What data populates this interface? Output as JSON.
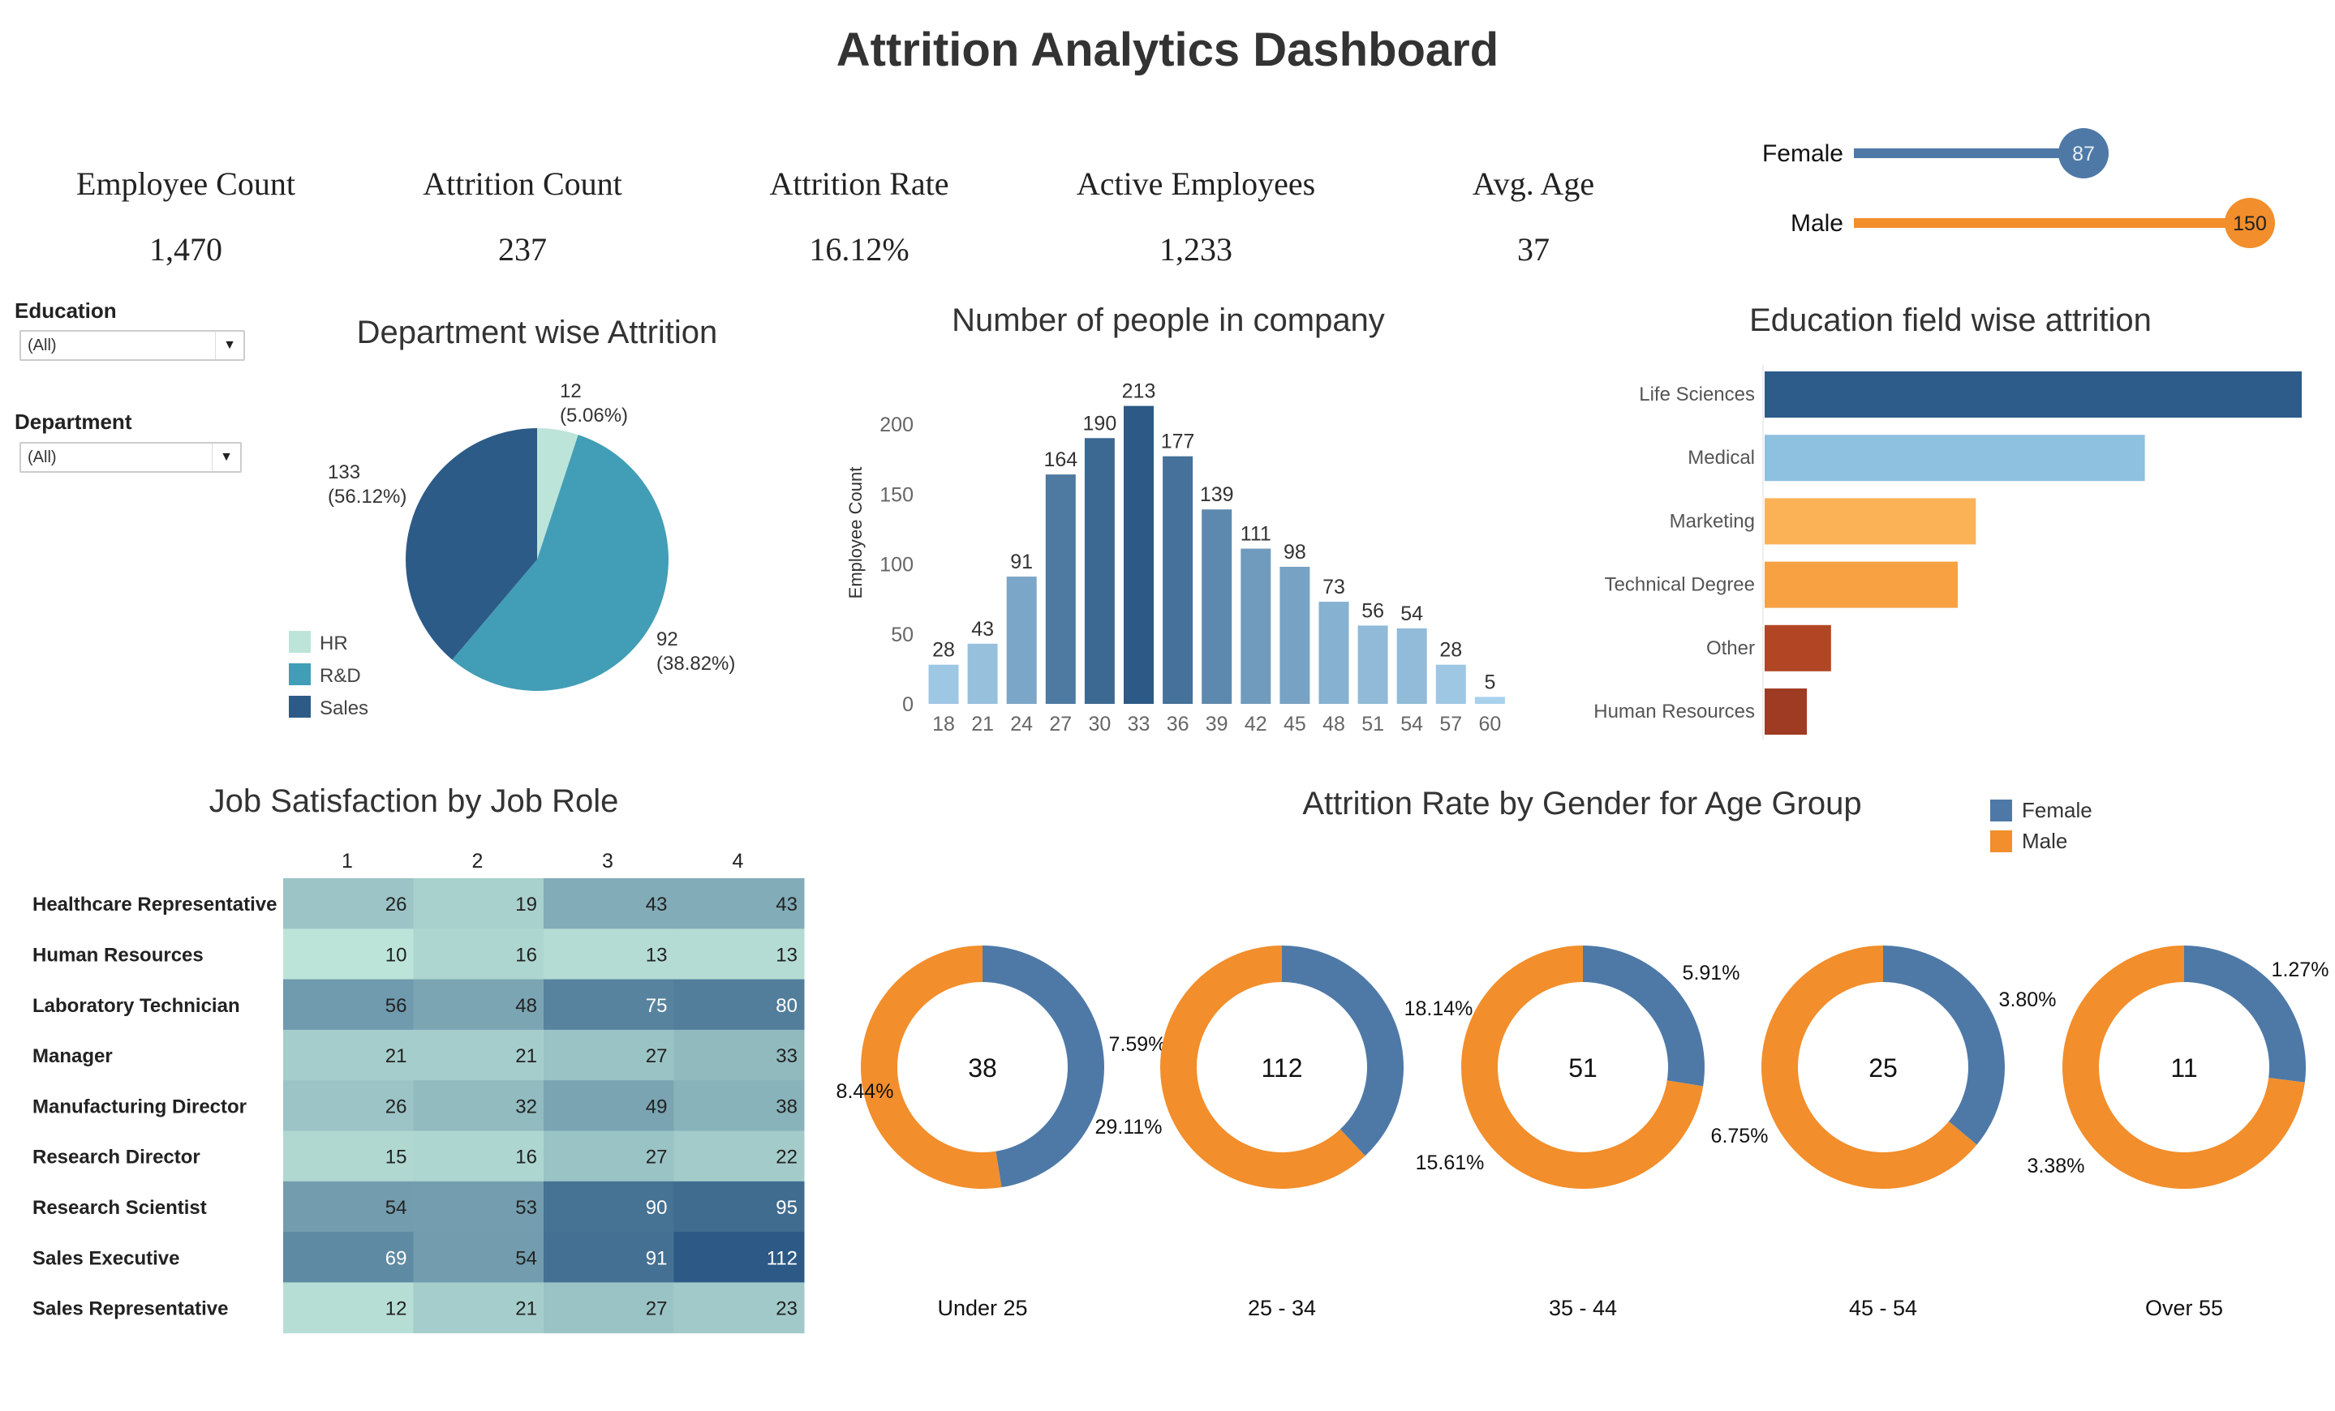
{
  "header": {
    "title": "Attrition Analytics Dashboard"
  },
  "kpis": [
    {
      "label": "Employee Count",
      "value": "1,470"
    },
    {
      "label": "Attrition Count",
      "value": "237"
    },
    {
      "label": "Attrition Rate",
      "value": "16.12%"
    },
    {
      "label": "Active Employees",
      "value": "1,233"
    },
    {
      "label": "Avg. Age",
      "value": "37"
    }
  ],
  "gender_attrition": {
    "max": 150,
    "items": [
      {
        "label": "Female",
        "value": 87,
        "display": "87",
        "color": "#4e79a7"
      },
      {
        "label": "Male",
        "value": 150,
        "display": "150",
        "color": "#f28e2b"
      }
    ]
  },
  "filters": {
    "education": {
      "label": "Education",
      "value": "(All)"
    },
    "department": {
      "label": "Department",
      "value": "(All)"
    }
  },
  "chart_data": [
    {
      "type": "pie",
      "title": "Department wise Attrition",
      "legend_position": "bottom-left",
      "slices": [
        {
          "name": "HR",
          "value": 12,
          "label": "12",
          "pct": "(5.06%)",
          "color": "#bde4d9"
        },
        {
          "name": "R&D",
          "value": 133,
          "label": "133",
          "pct": "(56.12%)",
          "color": "#429eb6"
        },
        {
          "name": "Sales",
          "value": 92,
          "label": "92",
          "pct": "(38.82%)",
          "color": "#2d5b87"
        }
      ]
    },
    {
      "type": "bar",
      "title": "Number of people in company",
      "ylabel": "Employee Count",
      "ylim": [
        0,
        213
      ],
      "yticks": [
        "0",
        "50",
        "100",
        "150",
        "200"
      ],
      "categories": [
        "18",
        "21",
        "24",
        "27",
        "30",
        "33",
        "36",
        "39",
        "42",
        "45",
        "48",
        "51",
        "54",
        "57",
        "60"
      ],
      "values": [
        28,
        43,
        91,
        164,
        190,
        213,
        177,
        139,
        111,
        98,
        73,
        56,
        54,
        28,
        5
      ],
      "color_range": [
        "#a9d2ec",
        "#2c5985"
      ]
    },
    {
      "type": "bar",
      "orientation": "horizontal",
      "title": "Education field wise attrition",
      "categories": [
        "Life Sciences",
        "Medical",
        "Marketing",
        "Technical Degree",
        "Other",
        "Human Resources"
      ],
      "values": [
        89,
        63,
        35,
        32,
        11,
        7
      ],
      "colors": [
        "#2d5b8a",
        "#8ec0e0",
        "#fbb257",
        "#f7a142",
        "#b24624",
        "#9f3b22"
      ]
    },
    {
      "type": "heatmap",
      "title": "Job Satisfaction by Job Role",
      "columns": [
        "1",
        "2",
        "3",
        "4"
      ],
      "rows": [
        {
          "label": "Healthcare Representative",
          "values": [
            26,
            19,
            43,
            43
          ]
        },
        {
          "label": "Human Resources",
          "values": [
            10,
            16,
            13,
            13
          ]
        },
        {
          "label": "Laboratory Technician",
          "values": [
            56,
            48,
            75,
            80
          ]
        },
        {
          "label": "Manager",
          "values": [
            21,
            21,
            27,
            33
          ]
        },
        {
          "label": "Manufacturing Director",
          "values": [
            26,
            32,
            49,
            38
          ]
        },
        {
          "label": "Research Director",
          "values": [
            15,
            16,
            27,
            22
          ]
        },
        {
          "label": "Research Scientist",
          "values": [
            54,
            53,
            90,
            95
          ]
        },
        {
          "label": "Sales Executive",
          "values": [
            69,
            54,
            91,
            112
          ]
        },
        {
          "label": "Sales Representative",
          "values": [
            12,
            21,
            27,
            23
          ]
        }
      ],
      "color_range": [
        "#bde4d9",
        "#2c5985"
      ]
    },
    {
      "type": "pie",
      "subtype": "donut",
      "title": "Attrition Rate by Gender for Age Group",
      "legend": [
        {
          "name": "Female",
          "color": "#4e79a7"
        },
        {
          "name": "Male",
          "color": "#f28e2b"
        }
      ],
      "legend_position": "top-right",
      "groups": [
        {
          "label": "Under 25",
          "total": "38",
          "female_share": 0.475,
          "pct_labels": [
            "7.59%",
            "29.11%",
            "8.44%"
          ]
        },
        {
          "label": "25 - 34",
          "total": "112",
          "female_share": 0.38,
          "pct_labels": [
            "18.14%",
            "15.61%"
          ]
        },
        {
          "label": "35 - 44",
          "total": "51",
          "female_share": 0.275,
          "pct_labels": [
            "5.91%",
            "6.75%"
          ]
        },
        {
          "label": "45 - 54",
          "total": "25",
          "female_share": 0.36,
          "pct_labels": [
            "3.80%",
            "3.38%"
          ]
        },
        {
          "label": "Over 55",
          "total": "11",
          "female_share": 0.27,
          "pct_labels": [
            "1.27%"
          ]
        }
      ]
    }
  ]
}
